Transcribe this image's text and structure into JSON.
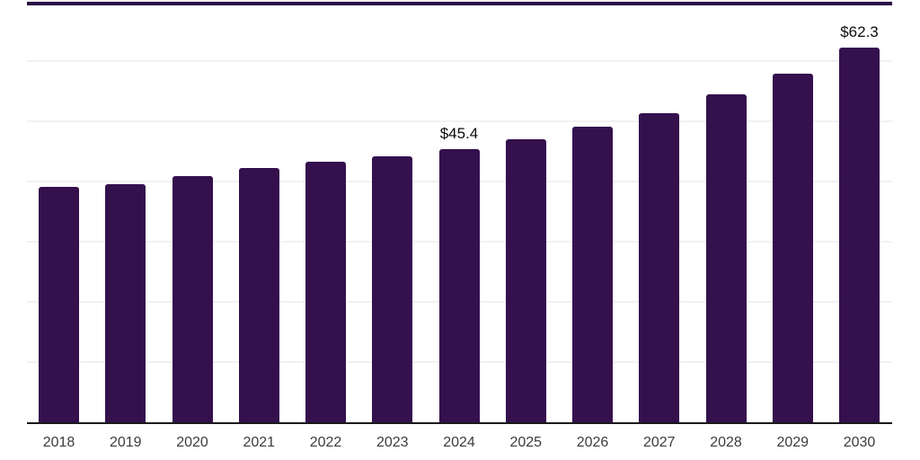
{
  "chart_data": {
    "type": "bar",
    "title": "",
    "xlabel": "",
    "ylabel": "",
    "categories": [
      "2018",
      "2019",
      "2020",
      "2021",
      "2022",
      "2023",
      "2024",
      "2025",
      "2026",
      "2027",
      "2028",
      "2029",
      "2030"
    ],
    "values": [
      39.1,
      39.6,
      40.9,
      42.3,
      43.3,
      44.2,
      45.4,
      47.1,
      49.1,
      51.4,
      54.5,
      58.0,
      62.3
    ],
    "value_labels": [
      {
        "category": "2024",
        "label": "$45.4"
      },
      {
        "category": "2030",
        "label": "$62.3"
      }
    ],
    "ylim": [
      0,
      70.2
    ],
    "gridline_values": [
      10,
      20,
      30,
      40,
      50,
      60,
      70
    ],
    "grid": "horizontal-only",
    "legend": "none",
    "colors": {
      "bar": "#34104d",
      "top_border": "#2a0e45",
      "gridline": "#f1f1f1",
      "axis_line": "#1a1a1a",
      "value_label_text": "#0d0d0d",
      "x_tick_text": "#3c3c3c",
      "background": "#ffffff"
    }
  }
}
